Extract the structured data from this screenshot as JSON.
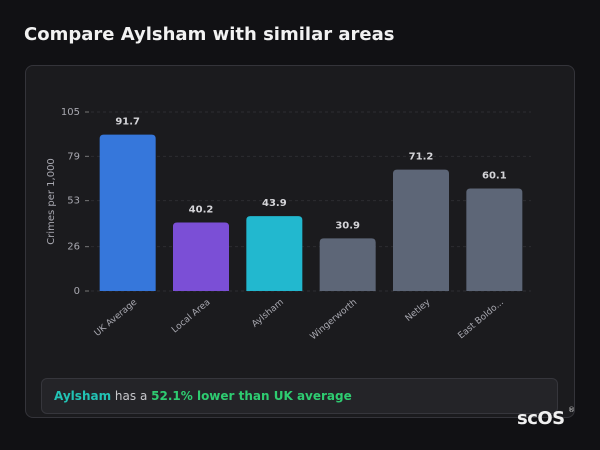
{
  "chart_data": {
    "type": "bar",
    "title": "Compare Aylsham with similar areas",
    "y_label": "Crimes per 1,000",
    "categories": [
      "UK Average",
      "Local Area",
      "Aylsham",
      "Wingerworth",
      "Netley",
      "East Boldo..."
    ],
    "values": [
      91.7,
      40.2,
      43.9,
      30.9,
      71.2,
      60.1
    ],
    "colors": [
      "#3677db",
      "#7b4fd6",
      "#22b8cf",
      "#5d6677",
      "#5d6677",
      "#5d6677"
    ],
    "ylim": [
      0,
      105
    ],
    "yticks": [
      0,
      26,
      53,
      79,
      105
    ],
    "grid": true
  },
  "footer": {
    "area": "Aylsham",
    "text": "has a",
    "highlight": "52.1% lower than UK average"
  },
  "logo": {
    "text": "scOS",
    "mark": "®"
  }
}
